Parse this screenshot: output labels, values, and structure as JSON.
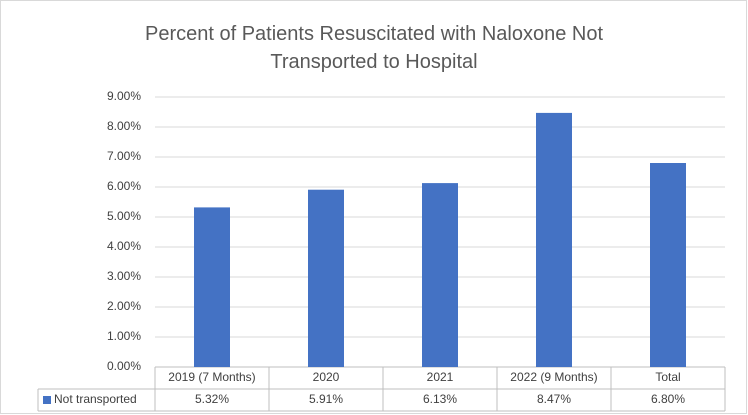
{
  "chart_data": {
    "type": "bar",
    "title": "Percent of Patients Resuscitated with Naloxone Not Transported to Hospital",
    "categories": [
      "2019 (7 Months)",
      "2020",
      "2021",
      "2022 (9 Months)",
      "Total"
    ],
    "series": [
      {
        "name": "Not transported",
        "color": "#4472c4",
        "values": [
          5.32,
          5.91,
          6.13,
          8.47,
          6.8
        ],
        "value_labels": [
          "5.32%",
          "5.91%",
          "6.13%",
          "8.47%",
          "6.80%"
        ]
      }
    ],
    "ylim": [
      0,
      9
    ],
    "yticks": [
      {
        "value": 0,
        "label": "0.00%"
      },
      {
        "value": 1,
        "label": "1.00%"
      },
      {
        "value": 2,
        "label": "2.00%"
      },
      {
        "value": 3,
        "label": "3.00%"
      },
      {
        "value": 4,
        "label": "4.00%"
      },
      {
        "value": 5,
        "label": "5.00%"
      },
      {
        "value": 6,
        "label": "6.00%"
      },
      {
        "value": 7,
        "label": "7.00%"
      },
      {
        "value": 8,
        "label": "8.00%"
      },
      {
        "value": 9,
        "label": "9.00%"
      }
    ],
    "grid": true
  }
}
